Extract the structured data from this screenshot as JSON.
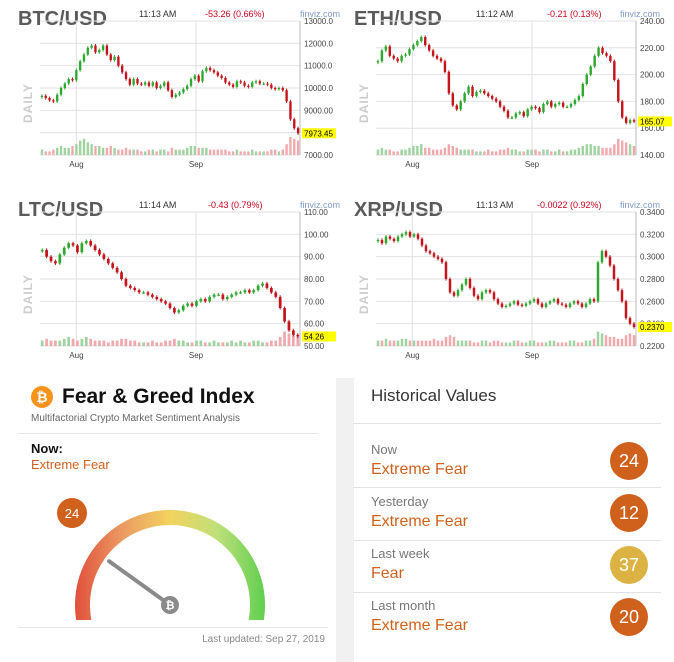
{
  "chart_data": [
    {
      "type": "candlestick",
      "pair": "BTC/USD",
      "time": "11:13 AM",
      "change": "-53.26 (0.66%)",
      "source": "finviz.com",
      "period": "DAILY",
      "last_price": "7973.45",
      "x_ticks": [
        "Aug",
        "Sep"
      ],
      "y_ticks": [
        "13000.0",
        "12000.0",
        "11000.0",
        "10000.0",
        "9000.00",
        "8000.00",
        "7000.00"
      ],
      "ylim": [
        7000,
        13000
      ],
      "close": [
        9650,
        9550,
        9450,
        9400,
        9700,
        10000,
        10200,
        10400,
        10350,
        10800,
        11200,
        11500,
        11800,
        11900,
        11600,
        11700,
        11900,
        11500,
        11250,
        11400,
        11000,
        10700,
        10400,
        10150,
        10400,
        10200,
        10150,
        10250,
        10100,
        10250,
        10000,
        10100,
        10250,
        9900,
        9600,
        9700,
        9800,
        9950,
        10100,
        10400,
        10550,
        10300,
        10750,
        10900,
        10800,
        10700,
        10550,
        10450,
        10250,
        10150,
        10050,
        10300,
        10250,
        10100,
        10050,
        10250,
        10300,
        10200,
        10200,
        10150,
        10000,
        9950,
        10000,
        9900,
        9400,
        8600,
        8200,
        7973
      ],
      "volume": [
        3,
        2,
        2,
        3,
        4,
        5,
        4,
        4,
        5,
        6,
        8,
        9,
        7,
        6,
        5,
        5,
        4,
        4,
        5,
        4,
        3,
        3,
        4,
        3,
        3,
        3,
        2,
        2,
        3,
        3,
        2,
        3,
        3,
        2,
        4,
        3,
        3,
        3,
        4,
        5,
        5,
        4,
        4,
        4,
        3,
        3,
        3,
        3,
        3,
        2,
        2,
        3,
        2,
        2,
        2,
        3,
        2,
        2,
        2,
        2,
        3,
        3,
        2,
        3,
        6,
        10,
        9,
        8
      ]
    },
    {
      "type": "candlestick",
      "pair": "ETH/USD",
      "time": "11:12 AM",
      "change": "-0.21 (0.13%)",
      "source": "finviz.com",
      "period": "DAILY",
      "last_price": "165.07",
      "x_ticks": [
        "Aug",
        "Sep"
      ],
      "y_ticks": [
        "240.00",
        "220.00",
        "200.00",
        "180.00",
        "160.00",
        "140.00"
      ],
      "ylim": [
        140,
        240
      ],
      "close": [
        210,
        218,
        221,
        214,
        212,
        210,
        214,
        215,
        219,
        222,
        225,
        228,
        222,
        218,
        214,
        212,
        210,
        202,
        186,
        177,
        174,
        180,
        186,
        191,
        184,
        187,
        188,
        186,
        184,
        182,
        180,
        176,
        173,
        168,
        168,
        171,
        172,
        169,
        174,
        176,
        175,
        172,
        178,
        180,
        176,
        178,
        179,
        176,
        176,
        178,
        181,
        184,
        193,
        200,
        206,
        214,
        220,
        216,
        214,
        210,
        196,
        180,
        168,
        164,
        166,
        165
      ],
      "volume": [
        3,
        4,
        3,
        3,
        2,
        2,
        3,
        3,
        4,
        5,
        5,
        6,
        4,
        4,
        3,
        3,
        3,
        4,
        6,
        5,
        4,
        3,
        3,
        3,
        3,
        2,
        2,
        2,
        3,
        2,
        2,
        3,
        3,
        4,
        3,
        3,
        2,
        2,
        3,
        3,
        3,
        2,
        3,
        3,
        2,
        2,
        3,
        2,
        2,
        3,
        3,
        4,
        5,
        6,
        6,
        5,
        5,
        4,
        4,
        4,
        6,
        9,
        8,
        7,
        6,
        5
      ]
    },
    {
      "type": "candlestick",
      "pair": "LTC/USD",
      "time": "11:14 AM",
      "change": "-0.43 (0.79%)",
      "source": "finviz.com",
      "period": "DAILY",
      "last_price": "54.26",
      "x_ticks": [
        "Aug",
        "Sep"
      ],
      "y_ticks": [
        "110.00",
        "100.00",
        "90.00",
        "80.00",
        "70.00",
        "60.00",
        "50.00"
      ],
      "ylim": [
        50,
        110
      ],
      "close": [
        93,
        90,
        88,
        87,
        91,
        94,
        96,
        95,
        92,
        96,
        97,
        95,
        93,
        91,
        89,
        87,
        85,
        83,
        80,
        77,
        76,
        75,
        74,
        74,
        73,
        72,
        71,
        70,
        69,
        67,
        65,
        66,
        68,
        69,
        68,
        70,
        71,
        70,
        72,
        73,
        73,
        71,
        72,
        73,
        74,
        74,
        75,
        74,
        75,
        77,
        78,
        76,
        74,
        72,
        67,
        61,
        57,
        55,
        54.26
      ],
      "volume": [
        3,
        4,
        3,
        3,
        3,
        4,
        5,
        4,
        3,
        4,
        5,
        4,
        3,
        3,
        3,
        2,
        3,
        3,
        4,
        4,
        3,
        3,
        2,
        2,
        2,
        3,
        2,
        2,
        3,
        3,
        4,
        3,
        3,
        2,
        2,
        3,
        3,
        2,
        2,
        3,
        2,
        2,
        2,
        3,
        2,
        3,
        2,
        2,
        3,
        3,
        2,
        2,
        3,
        3,
        5,
        8,
        7,
        6,
        5
      ]
    },
    {
      "type": "candlestick",
      "pair": "XRP/USD",
      "time": "11:13 AM",
      "change": "-0.0022 (0.92%)",
      "source": "finviz.com",
      "period": "DAILY",
      "last_price": "0.2370",
      "x_ticks": [
        "Aug",
        "Sep"
      ],
      "y_ticks": [
        "0.3400",
        "0.3200",
        "0.3000",
        "0.2800",
        "0.2600",
        "0.2400",
        "0.2200"
      ],
      "ylim": [
        0.22,
        0.34
      ],
      "close": [
        0.315,
        0.312,
        0.318,
        0.316,
        0.314,
        0.318,
        0.32,
        0.322,
        0.318,
        0.32,
        0.316,
        0.31,
        0.305,
        0.303,
        0.3,
        0.298,
        0.295,
        0.28,
        0.268,
        0.265,
        0.27,
        0.275,
        0.28,
        0.272,
        0.265,
        0.262,
        0.268,
        0.27,
        0.268,
        0.262,
        0.258,
        0.255,
        0.256,
        0.258,
        0.26,
        0.257,
        0.256,
        0.258,
        0.26,
        0.262,
        0.258,
        0.255,
        0.258,
        0.26,
        0.262,
        0.258,
        0.257,
        0.255,
        0.258,
        0.26,
        0.258,
        0.255,
        0.258,
        0.262,
        0.26,
        0.295,
        0.305,
        0.3,
        0.292,
        0.28,
        0.27,
        0.26,
        0.245,
        0.24,
        0.237
      ],
      "volume": [
        3,
        3,
        4,
        3,
        3,
        3,
        4,
        4,
        3,
        3,
        3,
        3,
        3,
        3,
        4,
        3,
        3,
        5,
        6,
        5,
        3,
        3,
        3,
        3,
        2,
        2,
        3,
        3,
        2,
        3,
        3,
        2,
        2,
        2,
        3,
        3,
        2,
        2,
        3,
        3,
        2,
        2,
        2,
        3,
        3,
        2,
        2,
        2,
        3,
        3,
        2,
        2,
        3,
        3,
        4,
        8,
        7,
        6,
        5,
        5,
        4,
        4,
        6,
        7,
        6
      ]
    }
  ],
  "fear_greed": {
    "title": "Fear & Greed Index",
    "subtitle": "Multifactorial Crypto Market Sentiment Analysis",
    "now_label": "Now:",
    "now_value": "Extreme Fear",
    "gauge_value": "24",
    "gauge_fraction": 0.24,
    "last_updated": "Last updated: Sep 27, 2019",
    "logo_icon": "bitcoin-icon"
  },
  "historical": {
    "title": "Historical Values",
    "rows": [
      {
        "label": "Now",
        "value": "Extreme Fear",
        "score": "24",
        "color": "#d0611d"
      },
      {
        "label": "Yesterday",
        "value": "Extreme Fear",
        "score": "12",
        "color": "#d0611d"
      },
      {
        "label": "Last week",
        "value": "Fear",
        "score": "37",
        "color": "#dcb343"
      },
      {
        "label": "Last month",
        "value": "Extreme Fear",
        "score": "20",
        "color": "#d0611d"
      }
    ]
  },
  "colors": {
    "up": "#2fa82f",
    "down": "#c4151c",
    "vol_up": "#9fd39f",
    "vol_down": "#f2a9ad",
    "grid": "#e2e2e2",
    "price_tag": "#ffff00"
  }
}
